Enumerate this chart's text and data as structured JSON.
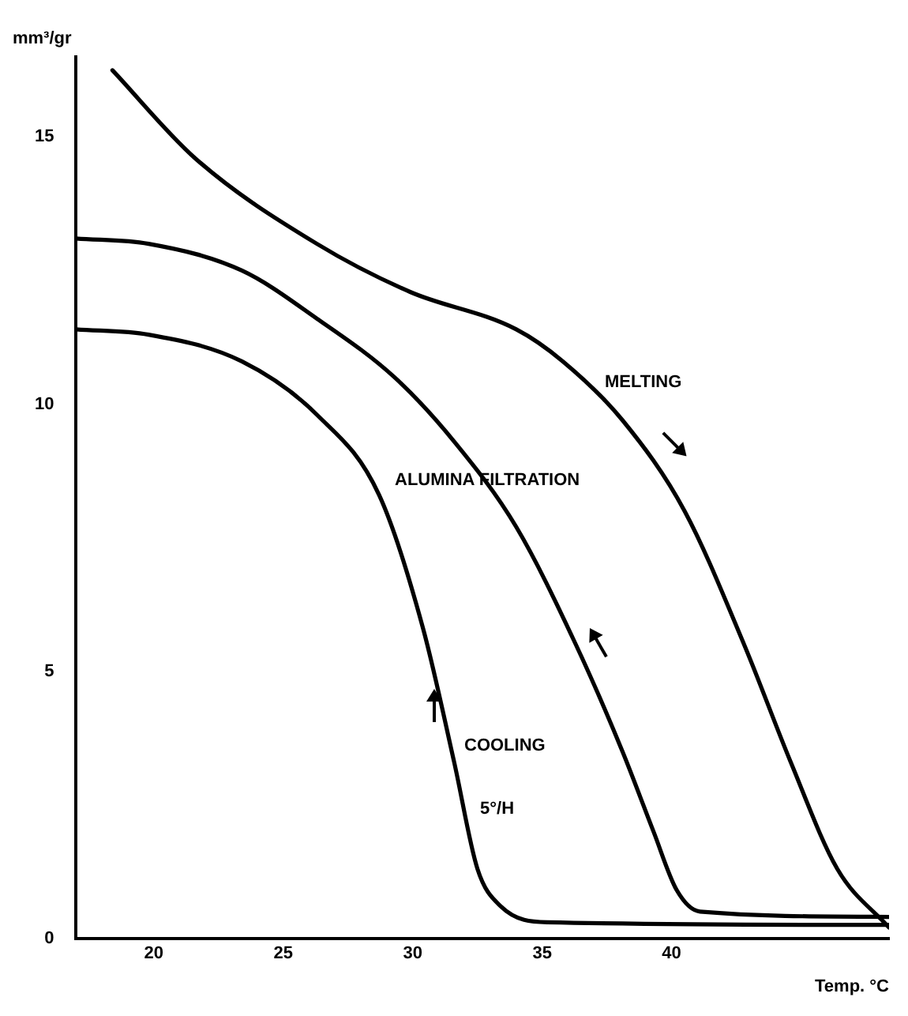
{
  "chart_data": {
    "type": "line",
    "ylabel": "mm³/gr",
    "xlabel": "Temp. °C",
    "xlim": [
      17,
      48.4
    ],
    "ylim": [
      0,
      16.5
    ],
    "xticks": [
      20,
      25,
      30,
      35,
      40
    ],
    "yticks": [
      0,
      5,
      10,
      15
    ],
    "grid": false,
    "legend": false,
    "marker": "none",
    "line_style": "solid",
    "series": [
      {
        "color": "#000000",
        "x": [
          18.4,
          21.6,
          26.3,
          29.9,
          34.0,
          35.8,
          38.1,
          40.5,
          42.8,
          44.6,
          46.4,
          48.4
        ],
        "values": [
          16.25,
          14.6,
          13.0,
          12.1,
          11.4,
          10.8,
          9.7,
          8.0,
          5.5,
          3.3,
          1.3,
          0.2
        ]
      },
      {
        "color": "#000000",
        "x": [
          17,
          19.8,
          23.4,
          26.3,
          29.3,
          31.6,
          34.0,
          36.3,
          38.1,
          39.3,
          40.2,
          41.1,
          48.4
        ],
        "values": [
          13.1,
          13.0,
          12.5,
          11.6,
          10.5,
          9.3,
          7.7,
          5.5,
          3.5,
          2.0,
          0.9,
          0.5,
          0.4
        ]
      },
      {
        "color": "#000000",
        "x": [
          17,
          19.8,
          23.4,
          26.3,
          28.7,
          30.4,
          31.6,
          32.5,
          33.4,
          35.2,
          48.4
        ],
        "values": [
          11.4,
          11.3,
          10.8,
          9.8,
          8.3,
          5.8,
          3.3,
          1.3,
          0.6,
          0.3,
          0.25
        ]
      }
    ],
    "annotations": [
      "MELTING",
      "ALUMINA FILTRATION",
      "COOLING",
      "5°/H"
    ]
  }
}
